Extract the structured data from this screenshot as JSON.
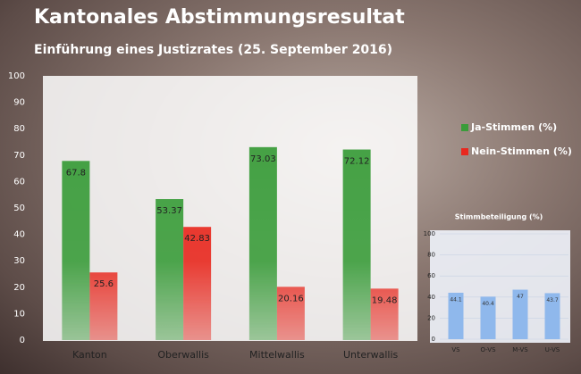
{
  "chart_data": [
    {
      "type": "bar",
      "title": "Kantonales Abstimmungsresultat",
      "subtitle": "Einführung eines Justizrates (25. September 2016)",
      "categories": [
        "Kanton",
        "Oberwallis",
        "Mittelwallis",
        "Unterwallis"
      ],
      "series": [
        {
          "name": "Ja-Stimmen (%)",
          "color": "#3a9c3a",
          "values": [
            67.8,
            53.37,
            73.03,
            72.12
          ]
        },
        {
          "name": "Nein-Stimmen (%)",
          "color": "#e8281e",
          "values": [
            25.6,
            42.83,
            20.16,
            19.48
          ]
        }
      ],
      "ylim": [
        0,
        100
      ],
      "yticks": [
        0,
        10,
        20,
        30,
        40,
        50,
        60,
        70,
        80,
        90,
        100
      ],
      "grid": false,
      "legend": "right"
    },
    {
      "type": "bar",
      "title": "Stimmbeteiligung (%)",
      "categories": [
        "VS",
        "O-VS",
        "M-VS",
        "U-VS"
      ],
      "series": [
        {
          "color": "#8fb8ec",
          "values": [
            44.1,
            40.4,
            47,
            43.7
          ]
        }
      ],
      "ylim": [
        0,
        100
      ],
      "yticks": [
        0,
        20,
        40,
        60,
        80,
        100
      ],
      "grid": true
    }
  ]
}
